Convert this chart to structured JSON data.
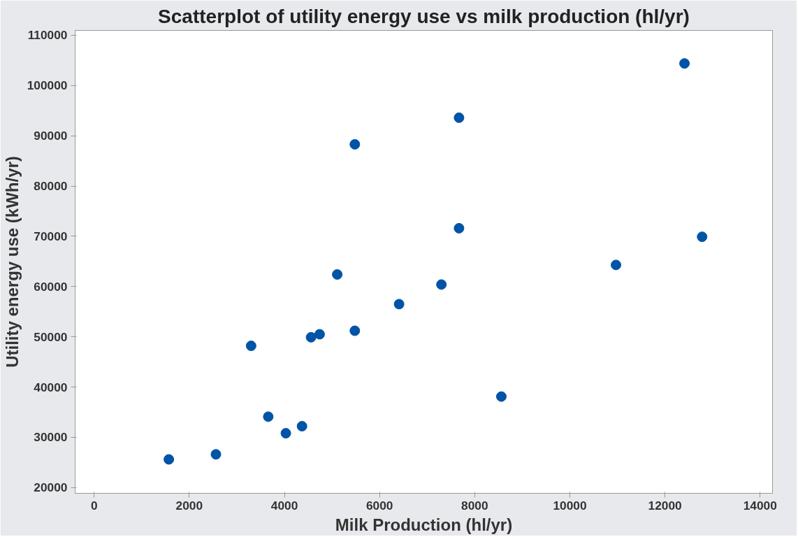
{
  "chart_data": {
    "type": "scatter",
    "title": "Scatterplot of utility energy use vs milk production (hl/yr)",
    "xlabel": "Milk Production (hl/yr)",
    "ylabel": "Utility energy use (kWh/yr)",
    "x": [
      1570,
      2560,
      3300,
      3660,
      4030,
      4370,
      4560,
      4740,
      5110,
      5480,
      5480,
      6410,
      7300,
      7670,
      7670,
      8560,
      10970,
      12410,
      12780
    ],
    "values": [
      25600,
      26600,
      48200,
      34100,
      30800,
      32200,
      49900,
      50500,
      62400,
      51200,
      88300,
      56500,
      60400,
      71600,
      93600,
      38100,
      64300,
      104400,
      69900
    ],
    "color": "#0054a6",
    "marker": "circle",
    "grid": false,
    "xlim": [
      -400,
      14260
    ],
    "ylim": [
      18850,
      110970
    ],
    "xticks": [
      0,
      2000,
      4000,
      6000,
      8000,
      10000,
      12000,
      14000
    ],
    "yticks": [
      20000,
      30000,
      40000,
      50000,
      60000,
      70000,
      80000,
      90000,
      100000,
      110000
    ]
  }
}
